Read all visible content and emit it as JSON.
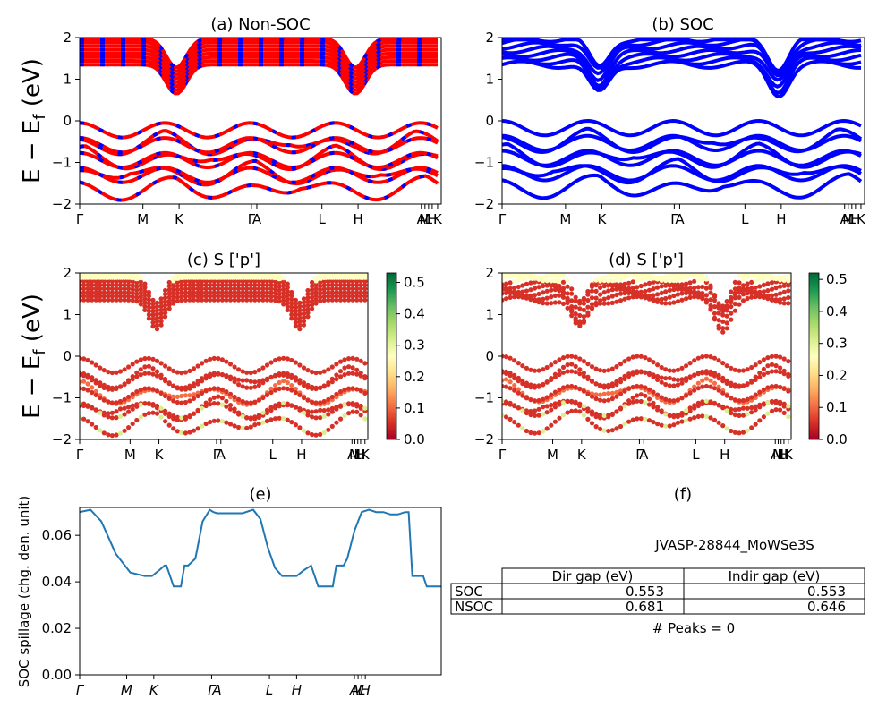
{
  "chart_data": [
    {
      "id": "a",
      "type": "line",
      "title": "(a) Non-SOC",
      "ylabel": "E − E_f (eV)",
      "ylim": [
        -2,
        2
      ],
      "yticks": [
        "2",
        "1",
        "0",
        "−1",
        "−2"
      ],
      "kpoints": [
        "Γ",
        "M",
        "K",
        "Γ",
        "A",
        "L",
        "H",
        "A",
        "M",
        "L",
        "H",
        "K"
      ],
      "colors": {
        "band": "#ff0000",
        "dash": "#0000ff"
      }
    },
    {
      "id": "b",
      "type": "line",
      "title": "(b) SOC",
      "ylim": [
        -2,
        2
      ],
      "yticks": [
        "2",
        "1",
        "0",
        "−1",
        "−2"
      ],
      "kpoints": [
        "Γ",
        "M",
        "K",
        "Γ",
        "A",
        "L",
        "H",
        "A",
        "M",
        "L",
        "H",
        "K"
      ],
      "colors": {
        "band": "#0000ff"
      }
    },
    {
      "id": "c",
      "type": "scatter",
      "title": "(c)  S ['p']",
      "ylabel": "E − E_f (eV)",
      "ylim": [
        -2,
        2
      ],
      "yticks": [
        "2",
        "1",
        "0",
        "−1",
        "−2"
      ],
      "kpoints": [
        "Γ",
        "M",
        "K",
        "Γ",
        "A",
        "L",
        "H",
        "A",
        "M",
        "L",
        "H",
        "K"
      ],
      "colorbar": {
        "ticks": [
          "0.5",
          "0.4",
          "0.3",
          "0.2",
          "0.1",
          "0.0"
        ],
        "range": [
          0.0,
          0.53
        ]
      }
    },
    {
      "id": "d",
      "type": "scatter",
      "title": "(d) S ['p']",
      "ylim": [
        -2,
        2
      ],
      "yticks": [
        "2",
        "1",
        "0",
        "−1",
        "−2"
      ],
      "kpoints": [
        "Γ",
        "M",
        "K",
        "Γ",
        "A",
        "L",
        "H",
        "A",
        "M",
        "L",
        "H",
        "K"
      ],
      "colorbar": {
        "ticks": [
          "0.5",
          "0.4",
          "0.3",
          "0.2",
          "0.1",
          "0.0"
        ],
        "range": [
          0.0,
          0.52
        ]
      }
    },
    {
      "id": "e",
      "type": "line",
      "title": "(e)",
      "ylabel": "SOC spillage (chg. den. unit)",
      "ylim": [
        0,
        0.072
      ],
      "yticks": [
        "0.06",
        "0.04",
        "0.02",
        "0.00"
      ],
      "kpoints": [
        "Γ",
        "M",
        "K",
        "Γ",
        "A",
        "L",
        "H",
        "A",
        "M",
        "L",
        "H"
      ],
      "x": [
        0,
        0.03,
        0.06,
        0.1,
        0.14,
        0.18,
        0.2,
        0.22,
        0.235,
        0.24,
        0.26,
        0.27,
        0.28,
        0.29,
        0.3,
        0.32,
        0.34,
        0.36,
        0.37,
        0.38,
        0.4,
        0.42,
        0.45,
        0.48,
        0.5,
        0.52,
        0.54,
        0.56,
        0.58,
        0.6,
        0.62,
        0.64,
        0.66,
        0.68,
        0.7,
        0.71,
        0.72,
        0.73,
        0.74,
        0.76,
        0.78,
        0.8,
        0.82,
        0.84,
        0.86,
        0.88,
        0.9,
        0.91,
        0.92,
        0.925,
        0.95,
        0.96,
        0.965,
        1.0
      ],
      "values": [
        0.07,
        0.071,
        0.066,
        0.052,
        0.044,
        0.0425,
        0.0425,
        0.045,
        0.047,
        0.047,
        0.038,
        0.038,
        0.038,
        0.047,
        0.047,
        0.05,
        0.066,
        0.071,
        0.07,
        0.0695,
        0.0695,
        0.0695,
        0.0695,
        0.071,
        0.067,
        0.055,
        0.046,
        0.0425,
        0.0425,
        0.0425,
        0.045,
        0.047,
        0.038,
        0.038,
        0.038,
        0.047,
        0.047,
        0.047,
        0.05,
        0.062,
        0.07,
        0.071,
        0.07,
        0.07,
        0.069,
        0.069,
        0.07,
        0.07,
        0.0425,
        0.0425,
        0.0425,
        0.038,
        0.038,
        0.038
      ],
      "color": "#1f77b4"
    }
  ],
  "panel_f": {
    "title": "(f)",
    "material": "JVASP-28844_MoWSe3S",
    "columns": [
      "Dir gap (eV)",
      "Indir gap (eV)"
    ],
    "rows": [
      {
        "label": "SOC",
        "dir": "0.553",
        "indir": "0.553"
      },
      {
        "label": "NSOC",
        "dir": "0.681",
        "indir": "0.646"
      }
    ],
    "peaks": "# Peaks = 0"
  }
}
